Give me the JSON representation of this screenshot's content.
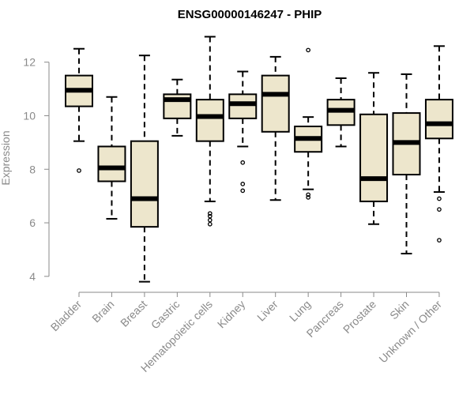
{
  "chart_data": {
    "type": "boxplot",
    "title": "ENSG00000146247 - PHIP",
    "xlabel": "",
    "ylabel": "Expression",
    "ylim": [
      3.7,
      13.2
    ],
    "yticks": [
      4,
      6,
      8,
      10,
      12
    ],
    "grid": false,
    "box_color": "#ede6cc",
    "line_color": "#000000",
    "axis_color": "#8a8a8a",
    "categories": [
      "Bladder",
      "Brain",
      "Breast",
      "Gastric",
      "Hematopoietic cells",
      "Kidney",
      "Liver",
      "Lung",
      "Pancreas",
      "Prostate",
      "Skin",
      "Unknown / Other"
    ],
    "boxes": [
      {
        "category": "Bladder",
        "whisker_low": 9.05,
        "q1": 10.35,
        "median": 10.95,
        "q3": 11.5,
        "whisker_high": 12.5,
        "outliers": [
          7.95
        ]
      },
      {
        "category": "Brain",
        "whisker_low": 6.15,
        "q1": 7.55,
        "median": 8.05,
        "q3": 8.85,
        "whisker_high": 10.7,
        "outliers": []
      },
      {
        "category": "Breast",
        "whisker_low": 3.8,
        "q1": 5.85,
        "median": 6.9,
        "q3": 9.05,
        "whisker_high": 12.25,
        "outliers": []
      },
      {
        "category": "Gastric",
        "whisker_low": 9.25,
        "q1": 9.9,
        "median": 10.6,
        "q3": 10.8,
        "whisker_high": 11.35,
        "outliers": []
      },
      {
        "category": "Hematopoietic cells",
        "whisker_low": 6.8,
        "q1": 9.05,
        "median": 9.97,
        "q3": 10.6,
        "whisker_high": 12.95,
        "outliers": [
          6.35,
          6.25,
          6.1,
          5.95
        ]
      },
      {
        "category": "Kidney",
        "whisker_low": 8.85,
        "q1": 9.9,
        "median": 10.45,
        "q3": 10.8,
        "whisker_high": 11.65,
        "outliers": [
          8.25,
          7.45,
          7.2
        ]
      },
      {
        "category": "Liver",
        "whisker_low": 6.85,
        "q1": 9.4,
        "median": 10.8,
        "q3": 11.5,
        "whisker_high": 12.2,
        "outliers": []
      },
      {
        "category": "Lung",
        "whisker_low": 7.25,
        "q1": 8.65,
        "median": 9.15,
        "q3": 9.6,
        "whisker_high": 9.95,
        "outliers": [
          12.45,
          7.05,
          6.95
        ]
      },
      {
        "category": "Pancreas",
        "whisker_low": 8.85,
        "q1": 9.65,
        "median": 10.2,
        "q3": 10.6,
        "whisker_high": 11.4,
        "outliers": []
      },
      {
        "category": "Prostate",
        "whisker_low": 5.95,
        "q1": 6.8,
        "median": 7.65,
        "q3": 10.05,
        "whisker_high": 11.6,
        "outliers": []
      },
      {
        "category": "Skin",
        "whisker_low": 4.85,
        "q1": 7.8,
        "median": 9.0,
        "q3": 10.1,
        "whisker_high": 11.55,
        "outliers": []
      },
      {
        "category": "Unknown / Other",
        "whisker_low": 7.15,
        "q1": 9.15,
        "median": 9.7,
        "q3": 10.6,
        "whisker_high": 12.6,
        "outliers": [
          6.9,
          6.5,
          5.35
        ]
      }
    ]
  }
}
